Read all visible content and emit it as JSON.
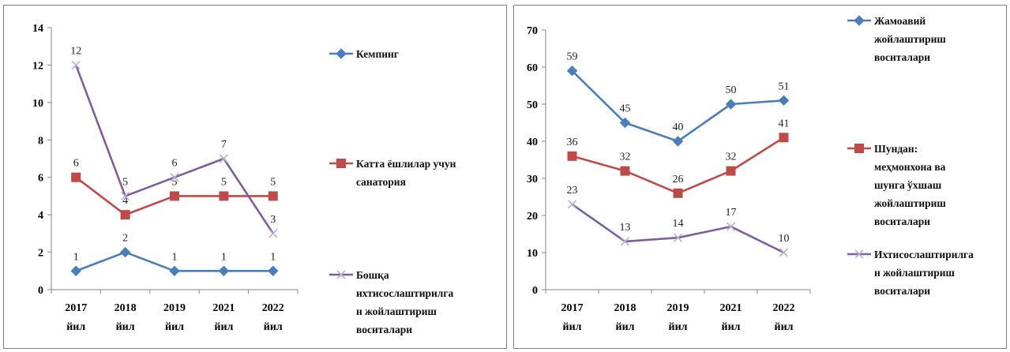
{
  "chart_data": [
    {
      "type": "line",
      "categories": [
        [
          "2017",
          "йил"
        ],
        [
          "2018",
          "йил"
        ],
        [
          "2019",
          "йил"
        ],
        [
          "2021",
          "йил"
        ],
        [
          "2022",
          "йил"
        ]
      ],
      "ylim": [
        0,
        14
      ],
      "yticks": [
        0,
        2,
        4,
        6,
        8,
        10,
        12,
        14
      ],
      "grid": false,
      "legend_position": "right",
      "series": [
        {
          "name": "Кемпинг",
          "legend_lines": [
            "Кемпинг"
          ],
          "values": [
            1,
            2,
            1,
            1,
            1
          ],
          "color": "#4a7ebb",
          "marker": "diamond"
        },
        {
          "name": "Катта ёшлилар учун санатория",
          "legend_lines": [
            "Катта ёшлилар  учун",
            "санатория"
          ],
          "values": [
            6,
            4,
            5,
            5,
            5
          ],
          "color": "#be4b48",
          "marker": "square"
        },
        {
          "name": "Бошқа ихтисослаштирилга н жойлаштириш воситалари",
          "legend_lines": [
            "Бошқа",
            "ихтисослаштирилга",
            "н жойлаштириш",
            "воситалари"
          ],
          "values": [
            12,
            5,
            6,
            7,
            3
          ],
          "color": "#7d5fa0",
          "marker": "x"
        }
      ]
    },
    {
      "type": "line",
      "categories": [
        [
          "2017",
          "йил"
        ],
        [
          "2018",
          "йил"
        ],
        [
          "2019",
          "йил"
        ],
        [
          "2021",
          "йил"
        ],
        [
          "2022",
          "йил"
        ]
      ],
      "ylim": [
        0,
        70
      ],
      "yticks": [
        0,
        10,
        20,
        30,
        40,
        50,
        60,
        70
      ],
      "grid": false,
      "legend_position": "right",
      "series": [
        {
          "name": "Жамоавий жойлаштириш воситалари",
          "legend_lines": [
            "Жамоавий",
            "жойлаштириш",
            "воситалари"
          ],
          "values": [
            59,
            45,
            40,
            50,
            51
          ],
          "color": "#4a7ebb",
          "marker": "diamond"
        },
        {
          "name": "Шундан: меҳмонхона ва шунга ўхшаш жойлаштириш воситалари",
          "legend_lines": [
            "Шундан:",
            "меҳмонхона ва",
            "шунга ўхшаш",
            "жойлаштириш",
            "воситалари"
          ],
          "values": [
            36,
            32,
            26,
            32,
            41
          ],
          "color": "#be4b48",
          "marker": "square"
        },
        {
          "name": "Ихтисослаштирилга н жойлаштириш воситалари",
          "legend_lines": [
            "Ихтисослаштирилга",
            "н жойлаштириш",
            "воситалари"
          ],
          "values": [
            23,
            13,
            14,
            17,
            10
          ],
          "color": "#7d5fa0",
          "marker": "x"
        }
      ]
    }
  ]
}
